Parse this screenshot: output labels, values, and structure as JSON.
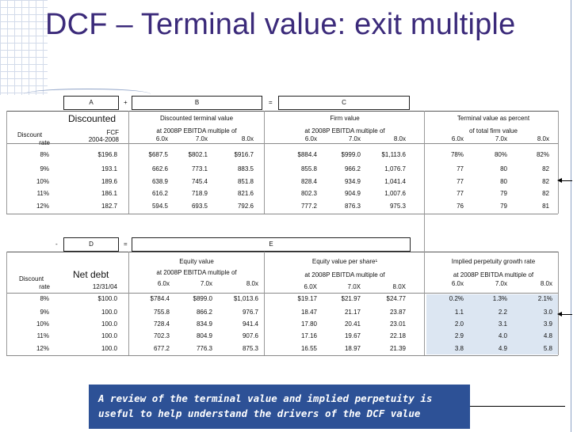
{
  "title": "DCF – Terminal value: exit multiple",
  "top": {
    "letters": [
      "A",
      "B",
      "C"
    ],
    "ops": [
      "+",
      "="
    ],
    "discounted_label": "Discounted",
    "fcf_label": "FCF",
    "fcf_period": "2004-2008",
    "discount_rate_label": [
      "Discount",
      "rate"
    ],
    "dtv_header": "Discounted terminal value",
    "multiple_header": "at 2008P EBITDA multiple of",
    "firm_value_header": "Firm value",
    "tv_pct_header": [
      "Terminal value as percent",
      "of total firm value"
    ],
    "multiples": [
      "6.0x",
      "7.0x",
      "8.0x"
    ],
    "rows": [
      {
        "rate": "8%",
        "fcf": "$196.8",
        "dtv": [
          "$687.5",
          "$802.1",
          "$916.7"
        ],
        "fv": [
          "$884.4",
          "$999.0",
          "$1,113.6"
        ],
        "pct": [
          "78%",
          "80%",
          "82%"
        ]
      },
      {
        "rate": "9%",
        "fcf": "193.1",
        "dtv": [
          "662.6",
          "773.1",
          "883.5"
        ],
        "fv": [
          "855.8",
          "966.2",
          "1,076.7"
        ],
        "pct": [
          "77",
          "80",
          "82"
        ]
      },
      {
        "rate": "10%",
        "fcf": "189.6",
        "dtv": [
          "638.9",
          "745.4",
          "851.8"
        ],
        "fv": [
          "828.4",
          "934.9",
          "1,041.4"
        ],
        "pct": [
          "77",
          "80",
          "82"
        ]
      },
      {
        "rate": "11%",
        "fcf": "186.1",
        "dtv": [
          "616.2",
          "718.9",
          "821.6"
        ],
        "fv": [
          "802.3",
          "904.9",
          "1,007.6"
        ],
        "pct": [
          "77",
          "79",
          "82"
        ]
      },
      {
        "rate": "12%",
        "fcf": "182.7",
        "dtv": [
          "594.5",
          "693.5",
          "792.6"
        ],
        "fv": [
          "777.2",
          "876.3",
          "975.3"
        ],
        "pct": [
          "76",
          "79",
          "81"
        ]
      }
    ]
  },
  "bottom": {
    "letters": [
      "D",
      "E"
    ],
    "ops": [
      "-",
      "="
    ],
    "net_debt_label": "Net debt",
    "net_debt_date": "12/31/04",
    "discount_rate_label": [
      "Discount",
      "rate"
    ],
    "equity_header": "Equity value",
    "multiple_header": "at 2008P EBITDA multiple of",
    "eps_header": "Equity value per share¹",
    "growth_header": "Implied perpetuity growth rate",
    "growth_sub": "at 2008P EBITDA multiple of",
    "multiples": [
      "6.0x",
      "7.0x",
      "8.0x"
    ],
    "multiples_caps": [
      "6.0X",
      "7.0X",
      "8.0X"
    ],
    "rows": [
      {
        "rate": "8%",
        "debt": "$100.0",
        "eq": [
          "$784.4",
          "$899.0",
          "$1,013.6"
        ],
        "eps": [
          "$19.17",
          "$21.97",
          "$24.77"
        ],
        "g": [
          "0.2%",
          "1.3%",
          "2.1%"
        ]
      },
      {
        "rate": "9%",
        "debt": "100.0",
        "eq": [
          "755.8",
          "866.2",
          "976.7"
        ],
        "eps": [
          "18.47",
          "21.17",
          "23.87"
        ],
        "g": [
          "1.1",
          "2.2",
          "3.0"
        ]
      },
      {
        "rate": "10%",
        "debt": "100.0",
        "eq": [
          "728.4",
          "834.9",
          "941.4"
        ],
        "eps": [
          "17.80",
          "20.41",
          "23.01"
        ],
        "g": [
          "2.0",
          "3.1",
          "3.9"
        ]
      },
      {
        "rate": "11%",
        "debt": "100.0",
        "eq": [
          "702.3",
          "804.9",
          "907.6"
        ],
        "eps": [
          "17.16",
          "19.67",
          "22.18"
        ],
        "g": [
          "2.9",
          "4.0",
          "4.8"
        ]
      },
      {
        "rate": "12%",
        "debt": "100.0",
        "eq": [
          "677.2",
          "776.3",
          "875.3"
        ],
        "eps": [
          "16.55",
          "18.97",
          "21.39"
        ],
        "g": [
          "3.8",
          "4.9",
          "5.8"
        ]
      }
    ]
  },
  "callout": "A review of the terminal value and implied perpetuity is useful to help understand the drivers of the DCF value",
  "colors": {
    "title": "#3b2a7a",
    "callout_bg": "#2d5196",
    "shade": "#dce6f2"
  }
}
